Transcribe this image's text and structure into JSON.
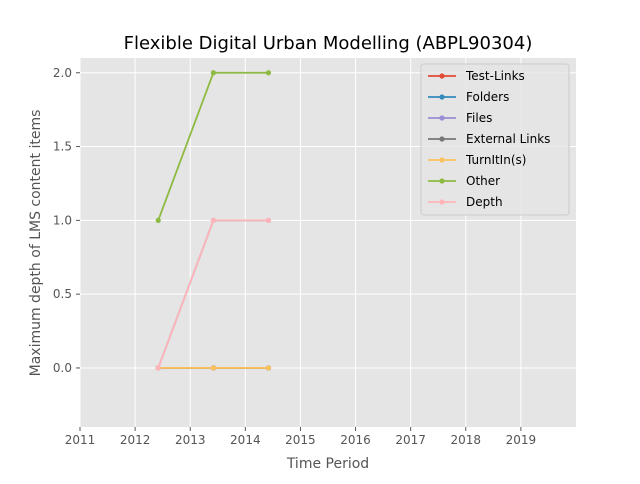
{
  "chart_data": {
    "type": "line",
    "title": "Flexible Digital Urban Modelling (ABPL90304)",
    "xlabel": "Time Period",
    "ylabel": "Maximum depth of LMS content items",
    "xlim": [
      2011,
      2020
    ],
    "ylim": [
      -0.4,
      2.1
    ],
    "xticks": [
      2011,
      2012,
      2013,
      2014,
      2015,
      2016,
      2017,
      2018,
      2019
    ],
    "yticks": [
      0.0,
      0.5,
      1.0,
      1.5,
      2.0
    ],
    "xtick_labels": [
      "2011",
      "2012",
      "2013",
      "2014",
      "2015",
      "2016",
      "2017",
      "2018",
      "2019"
    ],
    "ytick_labels": [
      "0.0",
      "0.5",
      "1.0",
      "1.5",
      "2.0"
    ],
    "grid": true,
    "legend_position": "top-right",
    "x": [
      2012.42,
      2013.42,
      2014.42
    ],
    "series": [
      {
        "name": "Test-Links",
        "color": "#e24a33",
        "values": [
          0,
          0,
          0
        ]
      },
      {
        "name": "Folders",
        "color": "#348abd",
        "values": [
          0,
          0,
          0
        ]
      },
      {
        "name": "Files",
        "color": "#988ed5",
        "values": [
          0,
          1,
          1
        ]
      },
      {
        "name": "External Links",
        "color": "#777777",
        "values": [
          0,
          0,
          0
        ]
      },
      {
        "name": "TurnItIn(s)",
        "color": "#fbc15e",
        "values": [
          0,
          0,
          0
        ]
      },
      {
        "name": "Other",
        "color": "#8eba42",
        "values": [
          1,
          2,
          2
        ]
      },
      {
        "name": "Depth",
        "color": "#ffb5b8",
        "values": [
          0,
          1,
          1
        ]
      }
    ]
  }
}
